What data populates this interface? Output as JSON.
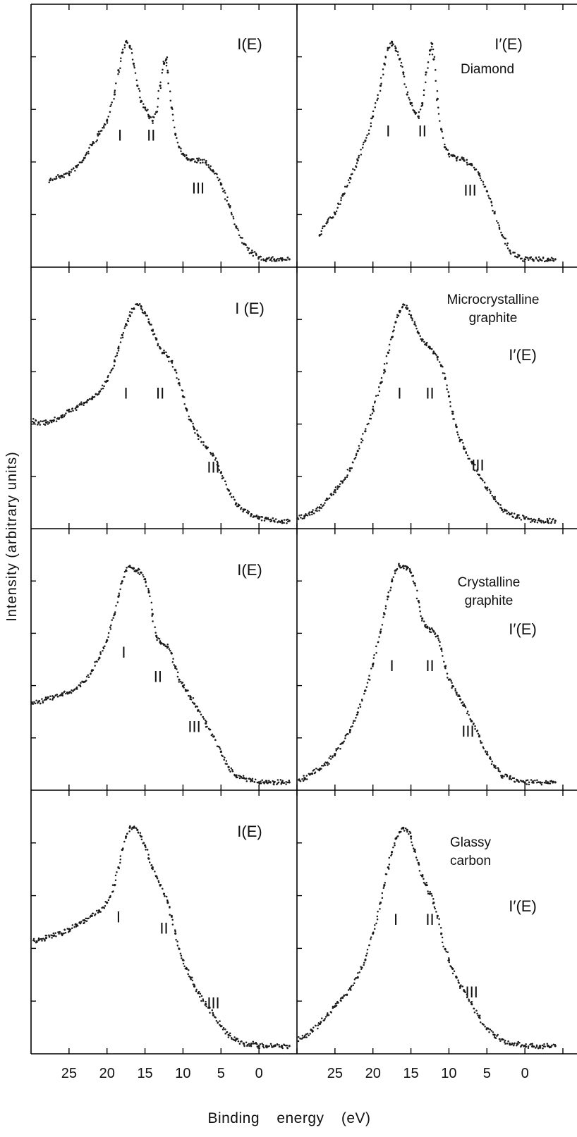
{
  "figure": {
    "ylabel": "Intensity (arbitrary units)",
    "xlabel": "Binding energy (eV)",
    "x_ticks": [
      "25",
      "20",
      "15",
      "10",
      "5",
      "0"
    ],
    "point_color": "#1a1a1a"
  },
  "chart_data": [
    {
      "type": "scatter",
      "title": "I(E)",
      "sample": "Diamond",
      "column": "left",
      "xlim": [
        30,
        -5
      ],
      "ylim": [
        0,
        1.1
      ],
      "x": [
        27.5,
        26,
        25,
        24,
        23,
        22,
        21,
        20,
        19,
        18.5,
        18,
        17.5,
        17,
        16.5,
        16,
        15.5,
        15,
        14.5,
        14,
        13.5,
        13,
        12.5,
        12.2,
        12,
        11.5,
        11,
        10.5,
        10,
        9.5,
        9,
        8,
        7,
        6,
        5,
        4,
        3,
        2,
        1,
        0,
        -1,
        -2,
        -3,
        -4
      ],
      "y": [
        0.37,
        0.39,
        0.4,
        0.43,
        0.47,
        0.53,
        0.58,
        0.64,
        0.76,
        0.87,
        0.95,
        1.0,
        0.98,
        0.9,
        0.8,
        0.73,
        0.7,
        0.66,
        0.64,
        0.68,
        0.8,
        0.9,
        0.92,
        0.86,
        0.7,
        0.58,
        0.52,
        0.49,
        0.47,
        0.46,
        0.46,
        0.45,
        0.41,
        0.35,
        0.26,
        0.16,
        0.08,
        0.04,
        0.02,
        0.01,
        0.01,
        0.01,
        0.01
      ],
      "labels": [
        {
          "text": "I",
          "x": 18.3,
          "y": 0.55
        },
        {
          "text": "II",
          "x": 14.2,
          "y": 0.55
        },
        {
          "text": "III",
          "x": 8,
          "y": 0.31
        }
      ]
    },
    {
      "type": "scatter",
      "title": "I′(E)",
      "sample": "Diamond",
      "column": "right",
      "xlim": [
        30,
        -5
      ],
      "ylim": [
        0,
        1.1
      ],
      "x": [
        27,
        26,
        25,
        24,
        23,
        22,
        21,
        20,
        19,
        18.5,
        18,
        17.5,
        17,
        16.5,
        16,
        15.5,
        15,
        14.5,
        14,
        13.5,
        13,
        12.5,
        12.2,
        12,
        11.5,
        11,
        10.5,
        10,
        9.5,
        9,
        8,
        7,
        6,
        5,
        4,
        3,
        2,
        1,
        0,
        -1,
        -2,
        -3,
        -4
      ],
      "y": [
        0.12,
        0.18,
        0.22,
        0.3,
        0.38,
        0.46,
        0.55,
        0.66,
        0.8,
        0.9,
        0.97,
        1.0,
        0.97,
        0.92,
        0.86,
        0.76,
        0.72,
        0.68,
        0.66,
        0.72,
        0.86,
        0.96,
        0.99,
        0.92,
        0.74,
        0.6,
        0.52,
        0.49,
        0.48,
        0.47,
        0.46,
        0.44,
        0.4,
        0.32,
        0.22,
        0.12,
        0.05,
        0.02,
        0.01,
        0.01,
        0.01,
        0.01,
        0.01
      ],
      "labels": [
        {
          "text": "I",
          "x": 18,
          "y": 0.57
        },
        {
          "text": "II",
          "x": 13.5,
          "y": 0.57
        },
        {
          "text": "III",
          "x": 7.2,
          "y": 0.3
        }
      ]
    },
    {
      "type": "scatter",
      "title": "I (E)",
      "sample": "Microcrystalline graphite",
      "column": "left",
      "xlim": [
        30,
        -5
      ],
      "ylim": [
        0,
        1.1
      ],
      "x": [
        30,
        29,
        28,
        27,
        26,
        25,
        24,
        23,
        22,
        21,
        20,
        19,
        18.5,
        18,
        17.5,
        17,
        16.5,
        16,
        15.5,
        15,
        14.5,
        14,
        13.5,
        13,
        12.5,
        12,
        11.5,
        11,
        10.5,
        10,
        9.5,
        9,
        8.5,
        8,
        7,
        6,
        5,
        4,
        3,
        2,
        1,
        0,
        -1,
        -2,
        -3,
        -4
      ],
      "y": [
        0.47,
        0.46,
        0.46,
        0.47,
        0.49,
        0.51,
        0.53,
        0.55,
        0.57,
        0.6,
        0.65,
        0.74,
        0.8,
        0.86,
        0.91,
        0.95,
        0.98,
        1.0,
        0.99,
        0.96,
        0.92,
        0.88,
        0.84,
        0.8,
        0.78,
        0.76,
        0.74,
        0.7,
        0.64,
        0.58,
        0.52,
        0.47,
        0.43,
        0.4,
        0.35,
        0.31,
        0.23,
        0.15,
        0.09,
        0.06,
        0.04,
        0.02,
        0.02,
        0.01,
        0.01,
        0.01
      ],
      "labels": [
        {
          "text": "I",
          "x": 17.5,
          "y": 0.57
        },
        {
          "text": "II",
          "x": 13,
          "y": 0.57
        },
        {
          "text": "III",
          "x": 6,
          "y": 0.23
        }
      ]
    },
    {
      "type": "scatter",
      "title": "I′(E)",
      "sample": "Microcrystalline graphite",
      "column": "right",
      "xlim": [
        30,
        -5
      ],
      "ylim": [
        0,
        1.1
      ],
      "x": [
        30,
        29,
        28,
        27,
        26,
        25,
        24,
        23,
        22,
        21,
        20,
        19,
        18.5,
        18,
        17.5,
        17,
        16.5,
        16,
        15.5,
        15,
        14.5,
        14,
        13.5,
        13,
        12.5,
        12,
        11.5,
        11,
        10.5,
        10,
        9.5,
        9,
        8.5,
        8,
        7,
        6,
        5,
        4,
        3,
        2,
        1,
        0,
        -1,
        -2,
        -3,
        -4
      ],
      "y": [
        0.02,
        0.03,
        0.05,
        0.07,
        0.11,
        0.15,
        0.19,
        0.25,
        0.33,
        0.42,
        0.52,
        0.64,
        0.7,
        0.78,
        0.85,
        0.92,
        0.97,
        1.0,
        0.98,
        0.95,
        0.91,
        0.87,
        0.84,
        0.82,
        0.8,
        0.78,
        0.76,
        0.72,
        0.66,
        0.58,
        0.5,
        0.44,
        0.38,
        0.34,
        0.28,
        0.22,
        0.16,
        0.11,
        0.06,
        0.04,
        0.03,
        0.02,
        0.01,
        0.01,
        0.01,
        0.01
      ],
      "labels": [
        {
          "text": "I",
          "x": 16.5,
          "y": 0.57
        },
        {
          "text": "II",
          "x": 12.5,
          "y": 0.57
        },
        {
          "text": "III",
          "x": 6.2,
          "y": 0.24
        }
      ]
    },
    {
      "type": "scatter",
      "title": "I(E)",
      "sample": "Crystalline graphite",
      "column": "left",
      "xlim": [
        30,
        -5
      ],
      "ylim": [
        0,
        1.1
      ],
      "x": [
        30,
        29,
        28,
        27,
        26,
        25,
        24,
        23,
        22,
        21,
        20,
        19,
        18.5,
        18,
        17.5,
        17,
        16.5,
        16,
        15.5,
        15,
        14.5,
        14,
        13.5,
        13,
        12.5,
        12,
        11.5,
        11,
        10.5,
        10,
        9.5,
        9,
        8.5,
        8,
        7,
        6,
        5,
        4,
        3,
        2,
        1,
        0,
        -1,
        -2,
        -3,
        -4
      ],
      "y": [
        0.37,
        0.38,
        0.39,
        0.4,
        0.41,
        0.42,
        0.44,
        0.47,
        0.52,
        0.58,
        0.66,
        0.78,
        0.86,
        0.93,
        0.98,
        1.0,
        0.99,
        0.98,
        0.97,
        0.94,
        0.88,
        0.78,
        0.68,
        0.65,
        0.64,
        0.63,
        0.6,
        0.54,
        0.48,
        0.45,
        0.43,
        0.4,
        0.37,
        0.34,
        0.28,
        0.22,
        0.15,
        0.08,
        0.04,
        0.03,
        0.02,
        0.01,
        0.01,
        0.01,
        0.01,
        0.01
      ],
      "labels": [
        {
          "text": "I",
          "x": 17.8,
          "y": 0.58
        },
        {
          "text": "II",
          "x": 13.3,
          "y": 0.47
        },
        {
          "text": "III",
          "x": 8.5,
          "y": 0.24
        }
      ]
    },
    {
      "type": "scatter",
      "title": "I′(E)",
      "sample": "Crystalline graphite",
      "column": "right",
      "xlim": [
        30,
        -5
      ],
      "ylim": [
        0,
        1.1
      ],
      "x": [
        30,
        29,
        28,
        27,
        26,
        25,
        24,
        23,
        22,
        21,
        20,
        19,
        18.5,
        18,
        17.5,
        17,
        16.5,
        16,
        15.5,
        15,
        14.5,
        14,
        13.5,
        13,
        12.5,
        12,
        11.5,
        11,
        10.5,
        10,
        9.5,
        9,
        8.5,
        8,
        7,
        6,
        5,
        4,
        3,
        2,
        1,
        0,
        -1,
        -2,
        -3,
        -4
      ],
      "y": [
        0.02,
        0.03,
        0.05,
        0.07,
        0.1,
        0.14,
        0.19,
        0.25,
        0.33,
        0.43,
        0.55,
        0.7,
        0.78,
        0.86,
        0.93,
        0.98,
        1.0,
        1.0,
        0.99,
        0.97,
        0.92,
        0.84,
        0.76,
        0.72,
        0.71,
        0.7,
        0.68,
        0.62,
        0.54,
        0.48,
        0.45,
        0.42,
        0.39,
        0.36,
        0.29,
        0.22,
        0.14,
        0.08,
        0.04,
        0.03,
        0.02,
        0.01,
        0.01,
        0.01,
        0.01,
        0.01
      ],
      "labels": [
        {
          "text": "I",
          "x": 17.5,
          "y": 0.52
        },
        {
          "text": "II",
          "x": 12.5,
          "y": 0.52
        },
        {
          "text": "III",
          "x": 7.5,
          "y": 0.22
        }
      ]
    },
    {
      "type": "scatter",
      "title": "I(E)",
      "sample": "Glassy carbon",
      "column": "left",
      "xlim": [
        30,
        -5
      ],
      "ylim": [
        0,
        1.1
      ],
      "x": [
        30,
        29,
        28,
        27,
        26,
        25,
        24,
        23,
        22,
        21,
        20,
        19,
        18.5,
        18,
        17.5,
        17,
        16.5,
        16,
        15.5,
        15,
        14.5,
        14,
        13.5,
        13,
        12.5,
        12,
        11.5,
        11,
        10.5,
        10,
        9.5,
        9,
        8.5,
        8,
        7,
        6,
        5,
        4,
        3,
        2,
        1,
        0,
        -1,
        -2,
        -3,
        -4
      ],
      "y": [
        0.49,
        0.49,
        0.5,
        0.51,
        0.52,
        0.54,
        0.56,
        0.58,
        0.6,
        0.62,
        0.66,
        0.74,
        0.82,
        0.9,
        0.96,
        1.0,
        1.0,
        0.99,
        0.96,
        0.92,
        0.86,
        0.82,
        0.78,
        0.74,
        0.7,
        0.66,
        0.6,
        0.52,
        0.45,
        0.4,
        0.36,
        0.32,
        0.28,
        0.25,
        0.2,
        0.15,
        0.1,
        0.06,
        0.04,
        0.02,
        0.02,
        0.01,
        0.01,
        0.01,
        0.01,
        0.01
      ],
      "labels": [
        {
          "text": "I",
          "x": 18.5,
          "y": 0.57
        },
        {
          "text": "II",
          "x": 12.5,
          "y": 0.52
        },
        {
          "text": "III",
          "x": 6,
          "y": 0.18
        }
      ]
    },
    {
      "type": "scatter",
      "title": "I′(E)",
      "sample": "Glassy carbon",
      "column": "right",
      "xlim": [
        30,
        -5
      ],
      "ylim": [
        0,
        1.1
      ],
      "x": [
        30,
        29,
        28,
        27,
        26,
        25,
        24,
        23,
        22,
        21,
        20,
        19,
        18.5,
        18,
        17.5,
        17,
        16.5,
        16,
        15.5,
        15,
        14.5,
        14,
        13.5,
        13,
        12.5,
        12,
        11.5,
        11,
        10.5,
        10,
        9.5,
        9,
        8.5,
        8,
        7,
        6,
        5,
        4,
        3,
        2,
        1,
        0,
        -1,
        -2,
        -3,
        -4
      ],
      "y": [
        0.04,
        0.05,
        0.08,
        0.11,
        0.15,
        0.19,
        0.23,
        0.27,
        0.32,
        0.4,
        0.52,
        0.66,
        0.74,
        0.82,
        0.89,
        0.95,
        0.98,
        1.0,
        0.99,
        0.96,
        0.9,
        0.84,
        0.78,
        0.74,
        0.7,
        0.66,
        0.6,
        0.52,
        0.45,
        0.4,
        0.36,
        0.32,
        0.28,
        0.26,
        0.2,
        0.14,
        0.09,
        0.06,
        0.04,
        0.02,
        0.02,
        0.01,
        0.01,
        0.01,
        0.01,
        0.01
      ],
      "labels": [
        {
          "text": "I",
          "x": 17,
          "y": 0.56
        },
        {
          "text": "II",
          "x": 12.5,
          "y": 0.56
        },
        {
          "text": "III",
          "x": 7,
          "y": 0.23
        }
      ]
    }
  ]
}
